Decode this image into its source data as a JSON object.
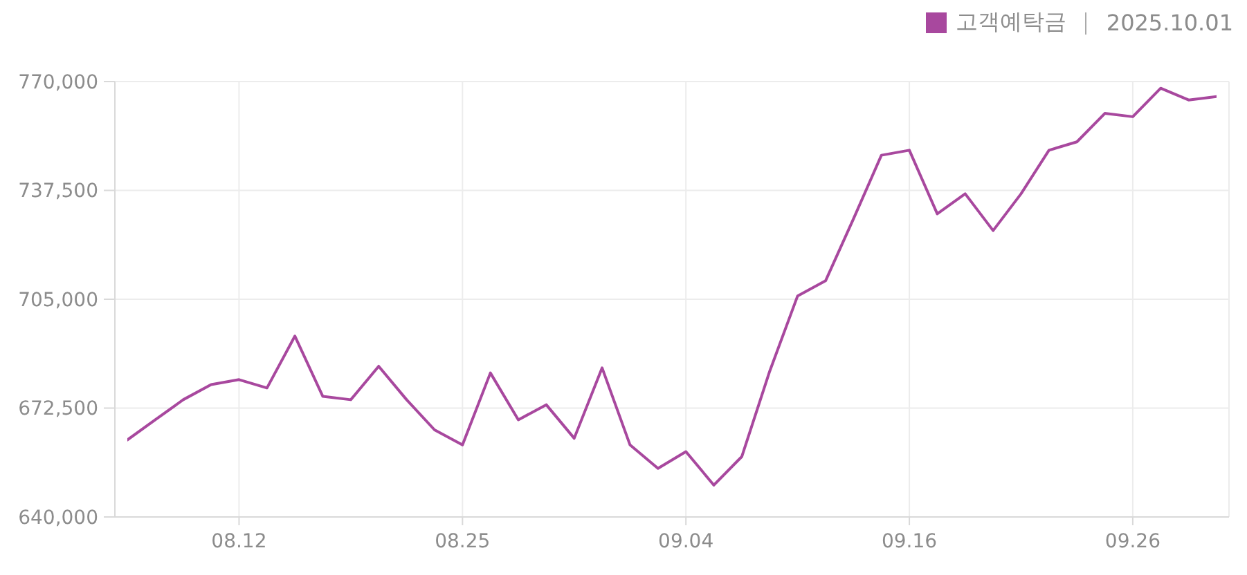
{
  "chart_data": {
    "type": "line",
    "subtitle": "2025.10.01",
    "categories": [
      null,
      null,
      null,
      null,
      "08.12",
      null,
      null,
      null,
      null,
      null,
      null,
      null,
      "08.25",
      null,
      null,
      null,
      null,
      null,
      null,
      null,
      "09.04",
      null,
      null,
      null,
      null,
      null,
      null,
      null,
      "09.16",
      null,
      null,
      null,
      null,
      null,
      null,
      null,
      "09.26",
      null,
      null,
      null
    ],
    "series": [
      {
        "name": "고객예탁금",
        "color": "#a8489e",
        "values": [
          663000,
          669000,
          675000,
          679500,
          681000,
          678500,
          694000,
          676000,
          675000,
          685000,
          675000,
          666000,
          661500,
          683000,
          669000,
          673500,
          663500,
          684500,
          661500,
          654500,
          659500,
          649500,
          658000,
          683500,
          706000,
          710500,
          729000,
          748000,
          749500,
          730500,
          736500,
          725500,
          736500,
          749500,
          752000,
          760500,
          759500,
          768000,
          764500,
          765500
        ]
      }
    ],
    "ylim": [
      640000,
      770000
    ],
    "yticks": [
      {
        "value": 640000,
        "label": "640,000"
      },
      {
        "value": 672500,
        "label": "672,500"
      },
      {
        "value": 705000,
        "label": "705,000"
      },
      {
        "value": 737500,
        "label": "737,500"
      },
      {
        "value": 770000,
        "label": "770,000"
      }
    ],
    "grid": true,
    "legend": "top right",
    "marker": "none"
  }
}
